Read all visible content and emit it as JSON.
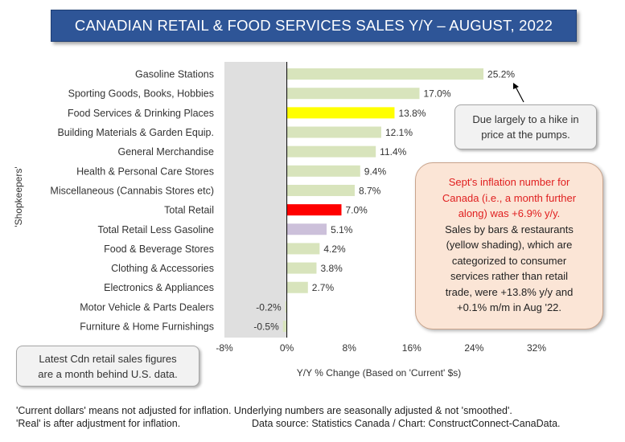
{
  "chart_data": {
    "type": "bar",
    "orientation": "horizontal",
    "title": "CANADIAN RETAIL & FOOD SERVICES SALES Y/Y – AUGUST, 2022",
    "xlabel": "Y/Y % Change (Based  on 'Current' $s)",
    "ylabel": "'Shopkeepers'",
    "xlim": [
      -8,
      32
    ],
    "x_ticks": [
      "-8%",
      "0%",
      "8%",
      "16%",
      "24%",
      "32%"
    ],
    "x_tick_values": [
      -8,
      0,
      8,
      16,
      24,
      32
    ],
    "grid": false,
    "categories": [
      "Gasoline Stations",
      "Sporting Goods, Books, Hobbies",
      "Food Services & Drinking Places",
      "Building Materials & Garden Equip.",
      "General Merchandise",
      "Health & Personal Care Stores",
      "Miscellaneous (Cannabis Stores etc)",
      "Total Retail",
      "Total Retail Less Gasoline",
      "Food & Beverage Stores",
      "Clothing & Accessories",
      "Electronics & Appliances",
      "Motor Vehicle & Parts Dealers",
      "Furniture & Home Furnishings"
    ],
    "values": [
      25.2,
      17.0,
      13.8,
      12.1,
      11.4,
      9.4,
      8.7,
      7.0,
      5.1,
      4.2,
      3.8,
      2.7,
      -0.2,
      -0.5
    ],
    "value_labels": [
      "25.2%",
      "17.0%",
      "13.8%",
      "12.1%",
      "11.4%",
      "9.4%",
      "8.7%",
      "7.0%",
      "5.1%",
      "4.2%",
      "3.8%",
      "2.7%",
      "-0.2%",
      "-0.5%"
    ],
    "bar_colors": [
      "#d8e4bc",
      "#d8e4bc",
      "#ffff00",
      "#d8e4bc",
      "#d8e4bc",
      "#d8e4bc",
      "#d8e4bc",
      "#ff0000",
      "#ccc0da",
      "#d8e4bc",
      "#d8e4bc",
      "#d8e4bc",
      "#d8e4bc",
      "#d8e4bc"
    ],
    "shaded_region": [
      -8,
      0
    ],
    "shaded_color": "#d9d9d9"
  },
  "annotations": {
    "gasoline_note": [
      "Due largely to a hike in",
      "price at the pumps."
    ],
    "latest_note": [
      "Latest Cdn retail sales figures",
      "are a month behind U.S. data."
    ],
    "inflation_red": [
      "Sept's inflation number for",
      "Canada (i.e., a month further",
      "along) was +6.9% y/y."
    ],
    "inflation_black": [
      "Sales by bars & restaurants",
      "(yellow shading), which are",
      "categorized to consumer",
      "services rather than retail",
      "trade, were +13.8% y/y and",
      "+0.1% m/m in Aug '22."
    ]
  },
  "footer": {
    "line1": "'Current dollars' means not adjusted for inflation. Underlying numbers are seasonally adjusted & not 'smoothed'.",
    "line2_left": "'Real' is after adjustment for inflation.",
    "line2_right": "Data source: Statistics Canada / Chart: ConstructConnect-CanaData."
  },
  "colors": {
    "title_bg": "#2e5597",
    "bar_default": "#d8e4bc",
    "highlight_food_services": "#ffff00",
    "highlight_total_retail": "#ff0000",
    "highlight_less_gasoline": "#ccc0da",
    "inflation_box_bg": "#fbe5d6",
    "inflation_text": "#e02020"
  }
}
